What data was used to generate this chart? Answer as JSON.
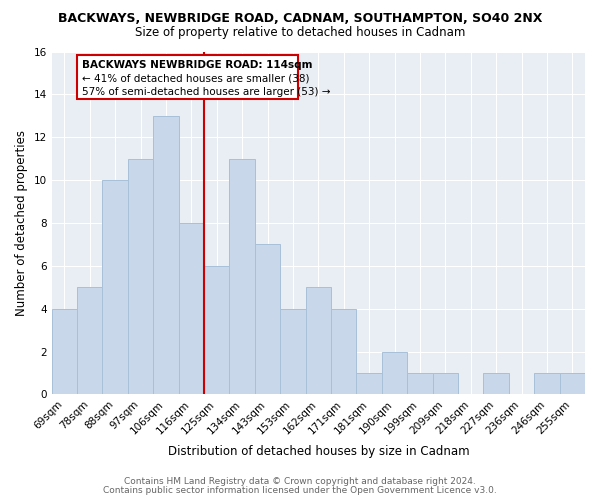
{
  "title": "BACKWAYS, NEWBRIDGE ROAD, CADNAM, SOUTHAMPTON, SO40 2NX",
  "subtitle": "Size of property relative to detached houses in Cadnam",
  "xlabel": "Distribution of detached houses by size in Cadnam",
  "ylabel": "Number of detached properties",
  "bar_color": "#c8d8ea",
  "bar_edge_color": "#a8c0d8",
  "plot_bg_color": "#e8eef4",
  "fig_bg_color": "#ffffff",
  "categories": [
    "69sqm",
    "78sqm",
    "88sqm",
    "97sqm",
    "106sqm",
    "116sqm",
    "125sqm",
    "134sqm",
    "143sqm",
    "153sqm",
    "162sqm",
    "171sqm",
    "181sqm",
    "190sqm",
    "199sqm",
    "209sqm",
    "218sqm",
    "227sqm",
    "236sqm",
    "246sqm",
    "255sqm"
  ],
  "values": [
    4,
    5,
    10,
    11,
    13,
    8,
    6,
    11,
    7,
    4,
    5,
    4,
    1,
    2,
    1,
    1,
    0,
    1,
    0,
    1,
    1
  ],
  "ylim": [
    0,
    16
  ],
  "yticks": [
    0,
    2,
    4,
    6,
    8,
    10,
    12,
    14,
    16
  ],
  "marker_label": "BACKWAYS NEWBRIDGE ROAD: 114sqm",
  "annotation_line1": "← 41% of detached houses are smaller (38)",
  "annotation_line2": "57% of semi-detached houses are larger (53) →",
  "marker_color": "#cc0000",
  "box_color": "#ffffff",
  "box_edge_color": "#cc0000",
  "footer1": "Contains HM Land Registry data © Crown copyright and database right 2024.",
  "footer2": "Contains public sector information licensed under the Open Government Licence v3.0.",
  "grid_color": "#ffffff",
  "title_fontsize": 9,
  "subtitle_fontsize": 8.5,
  "axis_label_fontsize": 8.5,
  "tick_fontsize": 7.5,
  "annotation_fontsize": 7.5,
  "footer_fontsize": 6.5
}
